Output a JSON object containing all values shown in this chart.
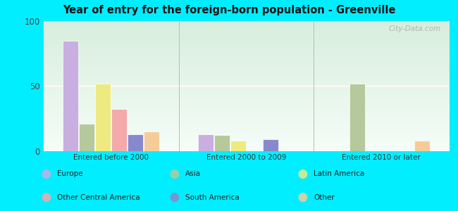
{
  "title": "Year of entry for the foreign-born population - Greenville",
  "categories": [
    "Entered before 2000",
    "Entered 2000 to 2009",
    "Entered 2010 or later"
  ],
  "series_order": [
    "Europe",
    "Asia",
    "Latin America",
    "Other Central America",
    "South America",
    "Other"
  ],
  "series": {
    "Europe": [
      85,
      13,
      0
    ],
    "Asia": [
      21,
      12,
      52
    ],
    "Latin America": [
      52,
      8,
      0
    ],
    "Other Central America": [
      32,
      0,
      0
    ],
    "South America": [
      13,
      9,
      0
    ],
    "Other": [
      15,
      0,
      8
    ]
  },
  "colors": {
    "Europe": "#c9aee0",
    "Asia": "#b5c99a",
    "Latin America": "#eeea80",
    "Other Central America": "#f5aaaa",
    "South America": "#8888cc",
    "Other": "#f5cc99"
  },
  "ylim": [
    0,
    100
  ],
  "yticks": [
    0,
    50,
    100
  ],
  "bg_outer": "#00eeff",
  "bg_plot": "#e8f5ee",
  "watermark": "City-Data.com",
  "bar_width": 0.12,
  "legend_layout": [
    [
      "Europe",
      "Asia",
      "Latin America"
    ],
    [
      "Other Central America",
      "South America",
      "Other"
    ]
  ]
}
